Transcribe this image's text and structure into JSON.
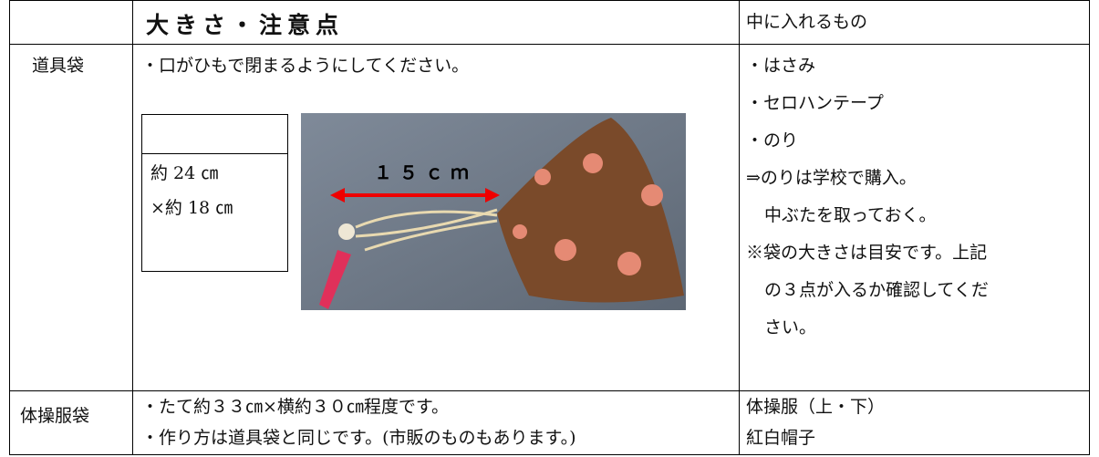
{
  "table": {
    "header": [
      "大きさ・注意点",
      "中に入れるもの"
    ],
    "rows": [
      {
        "label": "道具袋",
        "notes": [
          "・口がひもで閉まるようにしてください。"
        ],
        "box": [
          "約 24 ㎝",
          "×約 18 ㎝"
        ],
        "photo_label": "１５ｃｍ",
        "items": [
          "・はさみ",
          "・セロハンテープ",
          "・のり",
          "⇒のりは学校で購入。",
          "中ぶたを取っておく。",
          "※袋の大きさは目安です。上記",
          "の３点が入るか確認してくだ",
          "さい。"
        ]
      },
      {
        "label": "体操服袋",
        "notes": [
          "・たて約３３㎝×横約３０㎝程度です。",
          "・作り方は道具袋と同じです。(市販のものもあります。)"
        ],
        "items": [
          "体操服（上・下）",
          "紅白帽子"
        ]
      }
    ]
  }
}
